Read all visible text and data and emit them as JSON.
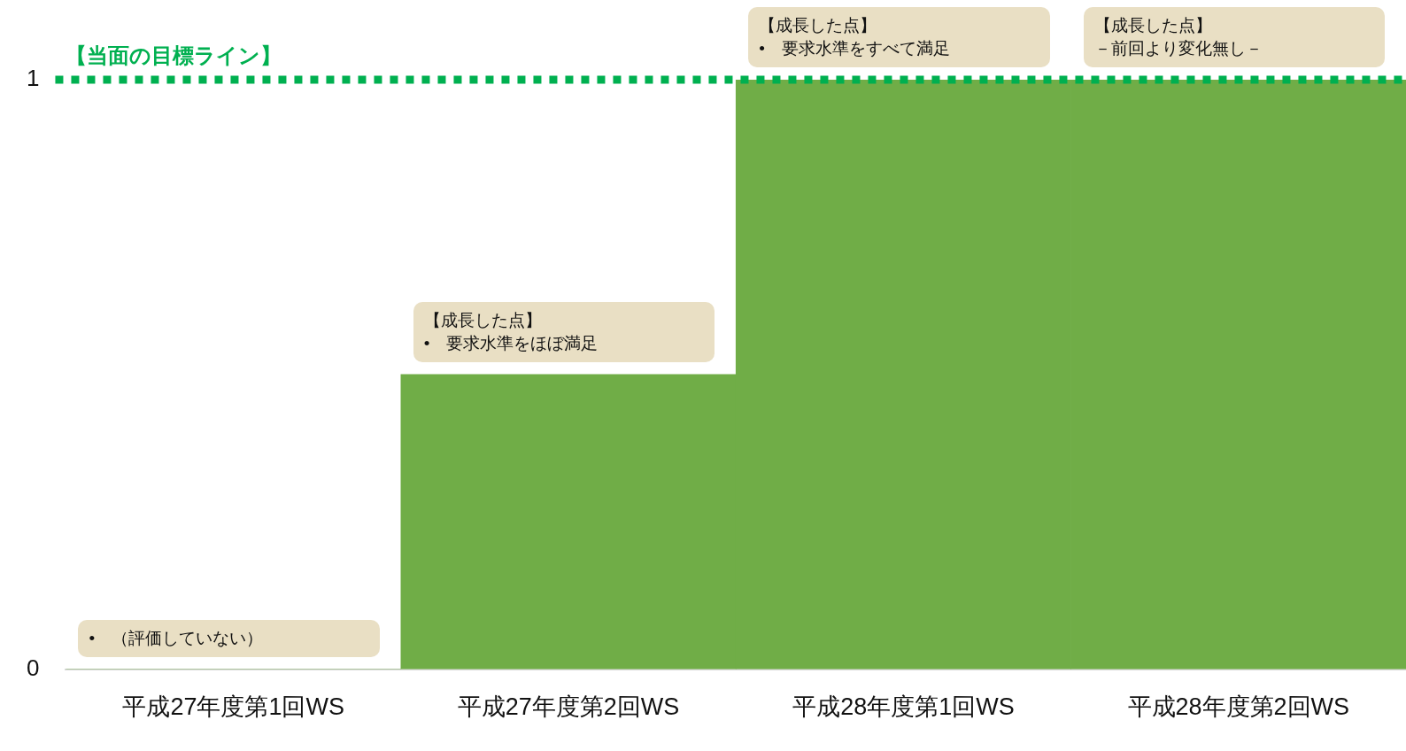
{
  "chart_data": {
    "type": "bar",
    "categories": [
      "平成27年度第1回WS",
      "平成27年度第2回WS",
      "平成28年度第1回WS",
      "平成28年度第2回WS"
    ],
    "values": [
      0,
      0.5,
      1,
      1
    ],
    "color": "#70ad47",
    "ylim": [
      0,
      1
    ],
    "yticks": [
      0,
      1
    ],
    "grid": false,
    "legend": false,
    "ref_lines": [
      {
        "axis": "y",
        "value": 1,
        "label": "【当面の目標ライン】",
        "color": "#00b050",
        "line_style": "dotted"
      }
    ],
    "annotations": [
      "•　（評価していない）",
      "【成長した点】",
      "•　要求水準をほぼ満足",
      "【成長した点】",
      "•　要求水準をすべて満足",
      "【成長した点】",
      "－前回より変化無し－"
    ]
  }
}
